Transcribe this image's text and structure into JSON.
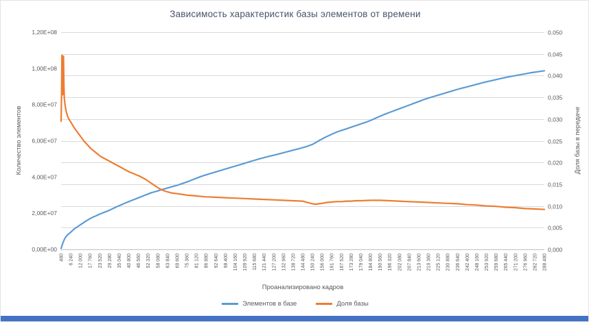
{
  "window": {
    "bottom_bar_color": "#4472C4"
  },
  "chart_data": {
    "type": "line",
    "title": "Зависимость характеристик базы элементов от времени",
    "xlabel": "Проанализировано кадров",
    "ylabel_left": "Количество элементов",
    "ylabel_right": "Доля базы в передаче",
    "grid": "horizontal",
    "legend_position": "bottom",
    "x_min": 480,
    "x_max": 288480,
    "x_tick_step": 5760,
    "x_tick_labels": [
      "480",
      "6 240",
      "12 000",
      "17 760",
      "23 520",
      "29 280",
      "35 040",
      "40 800",
      "46 560",
      "52 320",
      "58 080",
      "63 840",
      "69 600",
      "75 360",
      "81 120",
      "86 880",
      "92 640",
      "98 400",
      "104 160",
      "109 920",
      "115 680",
      "121 440",
      "127 200",
      "132 960",
      "138 720",
      "144 480",
      "150 240",
      "156 000",
      "161 760",
      "167 520",
      "173 280",
      "179 040",
      "184 800",
      "190 560",
      "196 320",
      "202 080",
      "207 840",
      "213 600",
      "219 360",
      "225 120",
      "230 880",
      "236 640",
      "242 400",
      "248 160",
      "253 920",
      "259 680",
      "265 440",
      "271 200",
      "276 960",
      "282 720",
      "288 480"
    ],
    "left_axis": {
      "min": 0,
      "max": 120000000,
      "tick_labels": [
        "0,00E+00",
        "2,00E+07",
        "4,00E+07",
        "6,00E+07",
        "8,00E+07",
        "1,00E+08",
        "1,20E+08"
      ]
    },
    "right_axis": {
      "min": 0,
      "max": 0.05,
      "tick_labels": [
        "0,000",
        "0,005",
        "0,010",
        "0,015",
        "0,020",
        "0,025",
        "0,030",
        "0,035",
        "0,040",
        "0,045",
        "0,050"
      ]
    },
    "series": [
      {
        "name": "Элементов в базе",
        "color": "#5B9BD5",
        "axis": "left",
        "points": [
          [
            480,
            500000.0
          ],
          [
            1440,
            3200000.0
          ],
          [
            2400,
            5500000.0
          ],
          [
            3360,
            7000000.0
          ],
          [
            4320,
            8000000.0
          ],
          [
            5280,
            8800000.0
          ],
          [
            6240,
            9500000.0
          ],
          [
            7680,
            10800000.0
          ],
          [
            9120,
            11800000.0
          ],
          [
            10560,
            12700000.0
          ],
          [
            12000,
            13600000.0
          ],
          [
            13440,
            14500000.0
          ],
          [
            14880,
            15400000.0
          ],
          [
            16320,
            16200000.0
          ],
          [
            17760,
            17000000.0
          ],
          [
            19200,
            17700000.0
          ],
          [
            20640,
            18300000.0
          ],
          [
            22080,
            18900000.0
          ],
          [
            23520,
            19500000.0
          ],
          [
            25440,
            20200000.0
          ],
          [
            27360,
            20900000.0
          ],
          [
            29280,
            21600000.0
          ],
          [
            31200,
            22500000.0
          ],
          [
            33120,
            23300000.0
          ],
          [
            35040,
            24100000.0
          ],
          [
            36960,
            24900000.0
          ],
          [
            38880,
            25700000.0
          ],
          [
            40800,
            26400000.0
          ],
          [
            42720,
            27100000.0
          ],
          [
            44640,
            27800000.0
          ],
          [
            46560,
            28500000.0
          ],
          [
            48480,
            29200000.0
          ],
          [
            50400,
            29900000.0
          ],
          [
            52320,
            30600000.0
          ],
          [
            54240,
            31300000.0
          ],
          [
            56160,
            31800000.0
          ],
          [
            58080,
            32300000.0
          ],
          [
            60000,
            32900000.0
          ],
          [
            61920,
            33400000.0
          ],
          [
            63840,
            33900000.0
          ],
          [
            65760,
            34400000.0
          ],
          [
            67680,
            34900000.0
          ],
          [
            69600,
            35400000.0
          ],
          [
            71520,
            36000000.0
          ],
          [
            73440,
            36600000.0
          ],
          [
            75360,
            37200000.0
          ],
          [
            77280,
            37900000.0
          ],
          [
            79200,
            38600000.0
          ],
          [
            81120,
            39300000.0
          ],
          [
            83040,
            40000000.0
          ],
          [
            84960,
            40600000.0
          ],
          [
            86880,
            41200000.0
          ],
          [
            89760,
            42000000.0
          ],
          [
            92640,
            42800000.0
          ],
          [
            95520,
            43600000.0
          ],
          [
            98400,
            44400000.0
          ],
          [
            101280,
            45200000.0
          ],
          [
            104160,
            46000000.0
          ],
          [
            107040,
            46800000.0
          ],
          [
            109920,
            47600000.0
          ],
          [
            112800,
            48400000.0
          ],
          [
            115680,
            49200000.0
          ],
          [
            118560,
            50000000.0
          ],
          [
            121440,
            50700000.0
          ],
          [
            124320,
            51400000.0
          ],
          [
            127200,
            52000000.0
          ],
          [
            130080,
            52700000.0
          ],
          [
            132960,
            53400000.0
          ],
          [
            135840,
            54100000.0
          ],
          [
            138720,
            54800000.0
          ],
          [
            141600,
            55500000.0
          ],
          [
            144480,
            56200000.0
          ],
          [
            147360,
            57000000.0
          ],
          [
            150240,
            58000000.0
          ],
          [
            151680,
            58700000.0
          ],
          [
            153120,
            59500000.0
          ],
          [
            154560,
            60300000.0
          ],
          [
            156000,
            61000000.0
          ],
          [
            157440,
            61700000.0
          ],
          [
            158880,
            62400000.0
          ],
          [
            160320,
            63000000.0
          ],
          [
            161760,
            63600000.0
          ],
          [
            163680,
            64400000.0
          ],
          [
            165600,
            65100000.0
          ],
          [
            167520,
            65700000.0
          ],
          [
            169440,
            66300000.0
          ],
          [
            171360,
            66900000.0
          ],
          [
            173280,
            67500000.0
          ],
          [
            176160,
            68400000.0
          ],
          [
            179040,
            69300000.0
          ],
          [
            181920,
            70200000.0
          ],
          [
            184800,
            71200000.0
          ],
          [
            187680,
            72400000.0
          ],
          [
            190560,
            73600000.0
          ],
          [
            193440,
            74700000.0
          ],
          [
            196320,
            75700000.0
          ],
          [
            199200,
            76700000.0
          ],
          [
            202080,
            77700000.0
          ],
          [
            204960,
            78700000.0
          ],
          [
            207840,
            79700000.0
          ],
          [
            210720,
            80700000.0
          ],
          [
            213600,
            81700000.0
          ],
          [
            216480,
            82700000.0
          ],
          [
            219360,
            83600000.0
          ],
          [
            222240,
            84400000.0
          ],
          [
            225120,
            85200000.0
          ],
          [
            228000,
            86000000.0
          ],
          [
            230880,
            86800000.0
          ],
          [
            233760,
            87600000.0
          ],
          [
            236640,
            88400000.0
          ],
          [
            239520,
            89100000.0
          ],
          [
            242400,
            89800000.0
          ],
          [
            245280,
            90500000.0
          ],
          [
            248160,
            91200000.0
          ],
          [
            251040,
            91900000.0
          ],
          [
            253920,
            92600000.0
          ],
          [
            256800,
            93200000.0
          ],
          [
            259680,
            93800000.0
          ],
          [
            262560,
            94400000.0
          ],
          [
            265440,
            95000000.0
          ],
          [
            268320,
            95500000.0
          ],
          [
            271200,
            96000000.0
          ],
          [
            274080,
            96500000.0
          ],
          [
            276960,
            97000000.0
          ],
          [
            279840,
            97500000.0
          ],
          [
            282720,
            97900000.0
          ],
          [
            285600,
            98300000.0
          ],
          [
            288480,
            98700000.0
          ]
        ]
      },
      {
        "name": "Доля базы",
        "color": "#ED7D31",
        "axis": "right",
        "points": [
          [
            480,
            0.0295
          ],
          [
            720,
            0.035
          ],
          [
            960,
            0.0447
          ],
          [
            1200,
            0.0372
          ],
          [
            1440,
            0.0356
          ],
          [
            1680,
            0.043
          ],
          [
            1920,
            0.0445
          ],
          [
            2160,
            0.0382
          ],
          [
            2400,
            0.0347
          ],
          [
            2880,
            0.0331
          ],
          [
            3360,
            0.0321
          ],
          [
            3840,
            0.0313
          ],
          [
            4320,
            0.0307
          ],
          [
            4800,
            0.0302
          ],
          [
            5760,
            0.0296
          ],
          [
            6720,
            0.029
          ],
          [
            7680,
            0.0284
          ],
          [
            8640,
            0.0278
          ],
          [
            9600,
            0.0273
          ],
          [
            10560,
            0.0268
          ],
          [
            11520,
            0.0263
          ],
          [
            12480,
            0.0258
          ],
          [
            13440,
            0.0253
          ],
          [
            14400,
            0.0248
          ],
          [
            15360,
            0.0244
          ],
          [
            16320,
            0.024
          ],
          [
            17280,
            0.0236
          ],
          [
            18240,
            0.0232
          ],
          [
            19200,
            0.0229
          ],
          [
            20160,
            0.0226
          ],
          [
            22080,
            0.022
          ],
          [
            24000,
            0.0214
          ],
          [
            25920,
            0.021
          ],
          [
            27840,
            0.0206
          ],
          [
            29760,
            0.0202
          ],
          [
            31680,
            0.0198
          ],
          [
            33600,
            0.0194
          ],
          [
            35520,
            0.019
          ],
          [
            37440,
            0.0186
          ],
          [
            39360,
            0.0182
          ],
          [
            41280,
            0.0178
          ],
          [
            43200,
            0.0175
          ],
          [
            45120,
            0.0172
          ],
          [
            47040,
            0.0169
          ],
          [
            48960,
            0.0165
          ],
          [
            50880,
            0.0161
          ],
          [
            52800,
            0.0156
          ],
          [
            54720,
            0.0151
          ],
          [
            56640,
            0.0146
          ],
          [
            58560,
            0.0141
          ],
          [
            60480,
            0.0137
          ],
          [
            62400,
            0.0134
          ],
          [
            64320,
            0.0132
          ],
          [
            66240,
            0.013
          ],
          [
            68160,
            0.0129
          ],
          [
            70080,
            0.0128
          ],
          [
            72000,
            0.0127
          ],
          [
            75360,
            0.0125
          ],
          [
            78240,
            0.0124
          ],
          [
            81120,
            0.0123
          ],
          [
            84000,
            0.0122
          ],
          [
            86880,
            0.0121
          ],
          [
            92640,
            0.012
          ],
          [
            98400,
            0.0119
          ],
          [
            104160,
            0.0118
          ],
          [
            109920,
            0.0117
          ],
          [
            115680,
            0.0116
          ],
          [
            121440,
            0.0115
          ],
          [
            127200,
            0.0114
          ],
          [
            132960,
            0.0113
          ],
          [
            138720,
            0.0112
          ],
          [
            144480,
            0.0111
          ],
          [
            146400,
            0.0109
          ],
          [
            148320,
            0.0107
          ],
          [
            150240,
            0.0105
          ],
          [
            152160,
            0.0104
          ],
          [
            154080,
            0.0105
          ],
          [
            156000,
            0.0106
          ],
          [
            158880,
            0.0108
          ],
          [
            161760,
            0.0109
          ],
          [
            164640,
            0.011
          ],
          [
            167520,
            0.011
          ],
          [
            170400,
            0.0111
          ],
          [
            173280,
            0.0111
          ],
          [
            176160,
            0.0112
          ],
          [
            179040,
            0.0112
          ],
          [
            184800,
            0.0113
          ],
          [
            190560,
            0.0113
          ],
          [
            196320,
            0.0112
          ],
          [
            202080,
            0.0111
          ],
          [
            207840,
            0.011
          ],
          [
            213600,
            0.0109
          ],
          [
            219360,
            0.0108
          ],
          [
            225120,
            0.0107
          ],
          [
            230880,
            0.0106
          ],
          [
            236640,
            0.0105
          ],
          [
            242400,
            0.0103
          ],
          [
            248160,
            0.0102
          ],
          [
            253920,
            0.01
          ],
          [
            259680,
            0.0099
          ],
          [
            265440,
            0.0097
          ],
          [
            271200,
            0.0096
          ],
          [
            276960,
            0.0094
          ],
          [
            282720,
            0.0093
          ],
          [
            288480,
            0.0092
          ]
        ]
      }
    ]
  }
}
